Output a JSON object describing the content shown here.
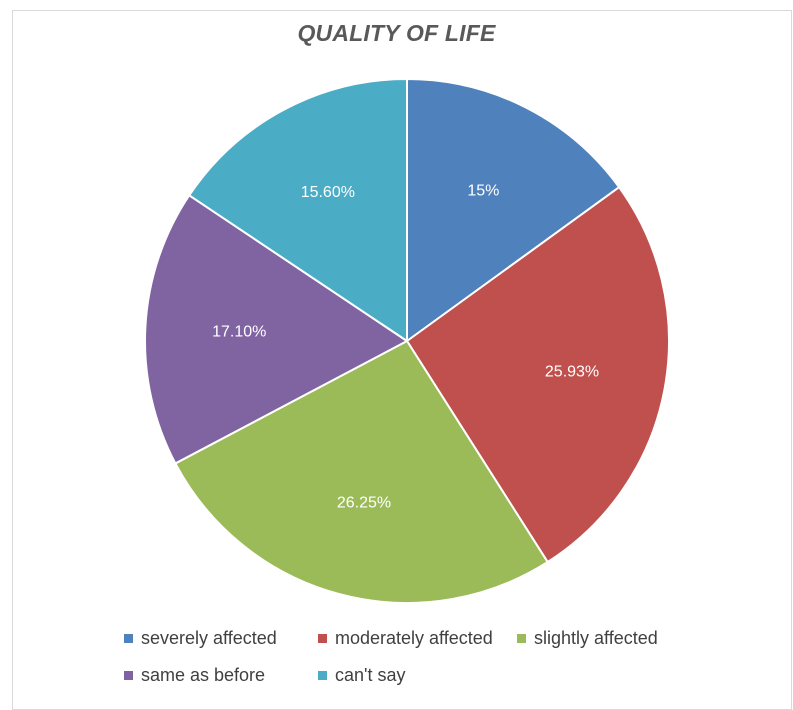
{
  "chart_data": {
    "type": "pie",
    "title": "QUALITY OF LIFE",
    "categories": [
      "severely affected",
      "moderately affected",
      "slightly affected",
      "same as before",
      "can't say"
    ],
    "values": [
      15,
      25.93,
      26.25,
      17.1,
      15.6
    ],
    "data_labels": [
      "15%",
      "25.93%",
      "26.25%",
      "17.10%",
      "15.60%"
    ],
    "colors": [
      "#4F81BD",
      "#C0504D",
      "#9BBB59",
      "#8064A2",
      "#4BACC6"
    ],
    "legend_position": "bottom",
    "start_angle": "top, clockwise"
  }
}
